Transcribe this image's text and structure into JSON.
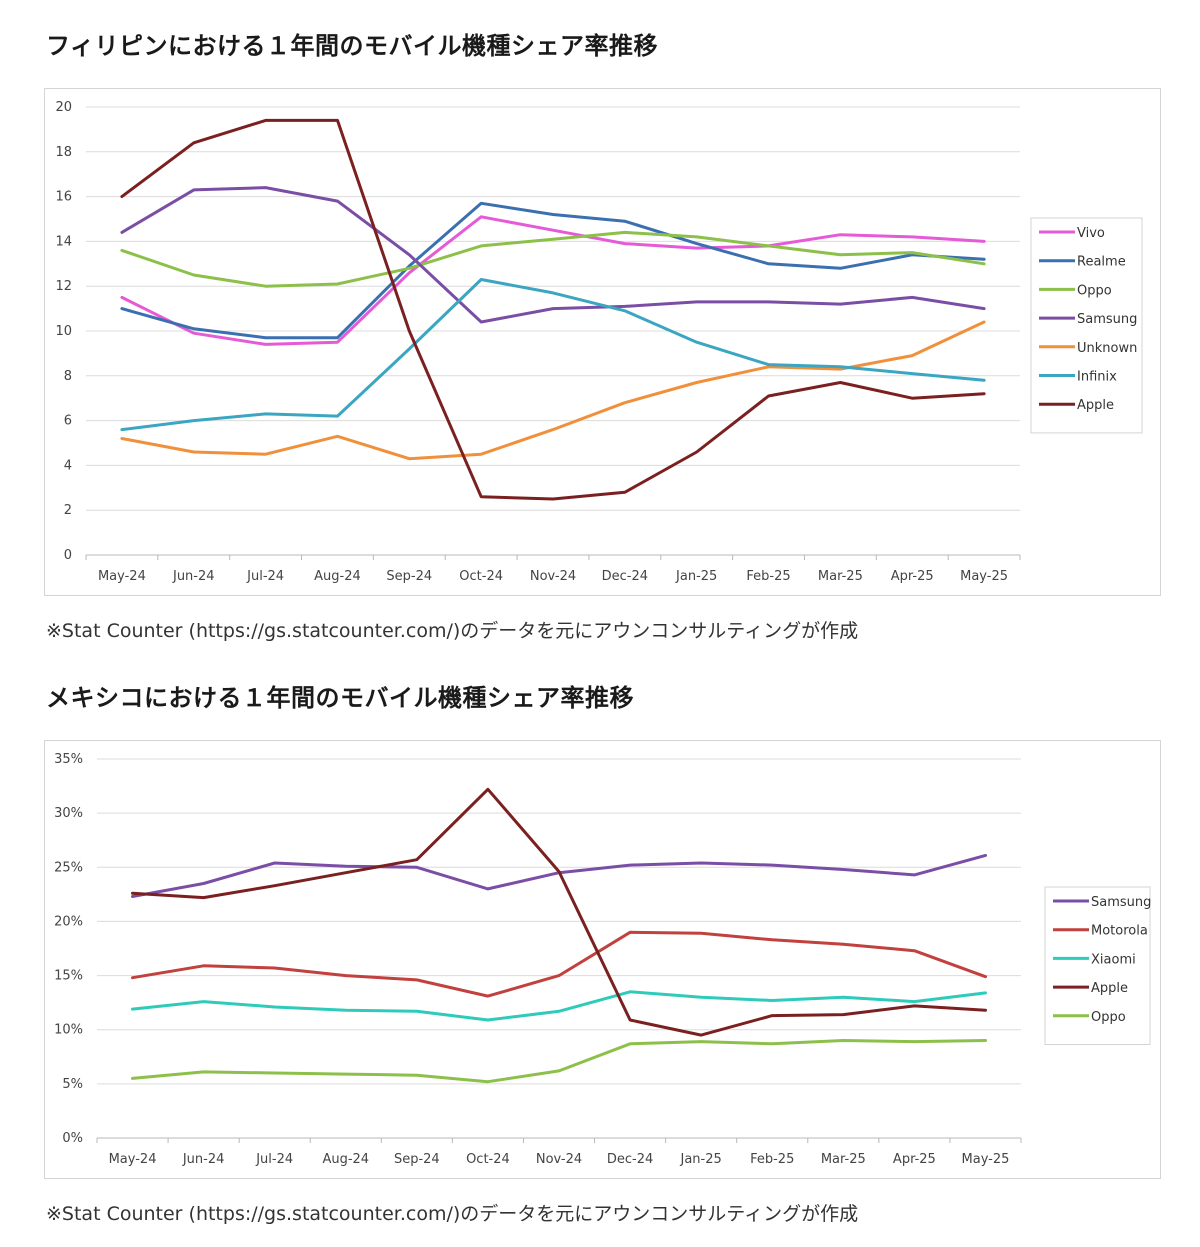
{
  "section1": {
    "title": "フィリピンにおける１年間のモバイル機種シェア率推移",
    "note": "※Stat Counter (https://gs.statcounter.com/)のデータを元にアウンコンサルティングが作成"
  },
  "section2": {
    "title": "メキシコにおける１年間のモバイル機種シェア率推移",
    "note": "※Stat Counter (https://gs.statcounter.com/)のデータを元にアウンコンサルティングが作成"
  },
  "chart_data": [
    {
      "type": "line",
      "title": "",
      "xlabel": "",
      "ylabel": "",
      "ylim": [
        0,
        20
      ],
      "ytick_step": 2,
      "ytick_format": "number",
      "grid": true,
      "legend_position": "right",
      "categories": [
        "May-24",
        "Jun-24",
        "Jul-24",
        "Aug-24",
        "Sep-24",
        "Oct-24",
        "Nov-24",
        "Dec-24",
        "Jan-25",
        "Feb-25",
        "Mar-25",
        "Apr-25",
        "May-25"
      ],
      "series": [
        {
          "name": "Vivo",
          "color": "#e55ad6",
          "values": [
            11.5,
            9.9,
            9.4,
            9.5,
            12.6,
            15.1,
            14.5,
            13.9,
            13.7,
            13.8,
            14.3,
            14.2,
            14.0
          ]
        },
        {
          "name": "Realme",
          "color": "#3a6fb0",
          "values": [
            11.0,
            10.1,
            9.7,
            9.7,
            12.9,
            15.7,
            15.2,
            14.9,
            13.9,
            13.0,
            12.8,
            13.4,
            13.2
          ]
        },
        {
          "name": "Oppo",
          "color": "#8cc04a",
          "values": [
            13.6,
            12.5,
            12.0,
            12.1,
            12.8,
            13.8,
            14.1,
            14.4,
            14.2,
            13.8,
            13.4,
            13.5,
            13.0
          ]
        },
        {
          "name": "Samsung",
          "color": "#7a4ea5",
          "values": [
            14.4,
            16.3,
            16.4,
            15.8,
            13.4,
            10.4,
            11.0,
            11.1,
            11.3,
            11.3,
            11.2,
            11.5,
            11.0
          ]
        },
        {
          "name": "Unknown",
          "color": "#f0903a",
          "values": [
            5.2,
            4.6,
            4.5,
            5.3,
            4.3,
            4.5,
            5.6,
            6.8,
            7.7,
            8.4,
            8.3,
            8.9,
            10.4
          ]
        },
        {
          "name": "Infinix",
          "color": "#3aa6c2",
          "values": [
            5.6,
            6.0,
            6.3,
            6.2,
            9.2,
            12.3,
            11.7,
            10.9,
            9.5,
            8.5,
            8.4,
            8.1,
            7.8
          ]
        },
        {
          "name": "Apple",
          "color": "#7b2020",
          "values": [
            16.0,
            18.4,
            19.4,
            19.4,
            10.0,
            2.6,
            2.5,
            2.8,
            4.6,
            7.1,
            7.7,
            7.0,
            7.2
          ]
        }
      ]
    },
    {
      "type": "line",
      "title": "",
      "xlabel": "",
      "ylabel": "",
      "ylim": [
        0,
        35
      ],
      "ytick_step": 5,
      "ytick_format": "percent",
      "grid": true,
      "legend_position": "right",
      "categories": [
        "May-24",
        "Jun-24",
        "Jul-24",
        "Aug-24",
        "Sep-24",
        "Oct-24",
        "Nov-24",
        "Dec-24",
        "Jan-25",
        "Feb-25",
        "Mar-25",
        "Apr-25",
        "May-25"
      ],
      "series": [
        {
          "name": "Samsung",
          "color": "#7a4ea5",
          "values": [
            22.3,
            23.5,
            25.4,
            25.1,
            25.0,
            23.0,
            24.5,
            25.2,
            25.4,
            25.2,
            24.8,
            24.3,
            26.1
          ]
        },
        {
          "name": "Motorola",
          "color": "#c0413d",
          "values": [
            14.8,
            15.9,
            15.7,
            15.0,
            14.6,
            13.1,
            15.0,
            19.0,
            18.9,
            18.3,
            17.9,
            17.3,
            14.9
          ]
        },
        {
          "name": "Xiaomi",
          "color": "#2ecbbb",
          "values": [
            11.9,
            12.6,
            12.1,
            11.8,
            11.7,
            10.9,
            11.7,
            13.5,
            13.0,
            12.7,
            13.0,
            12.6,
            13.4
          ]
        },
        {
          "name": "Apple",
          "color": "#7b2020",
          "values": [
            22.6,
            22.2,
            23.3,
            24.5,
            25.7,
            32.2,
            24.6,
            10.9,
            9.5,
            11.3,
            11.4,
            12.2,
            11.8
          ]
        },
        {
          "name": "Oppo",
          "color": "#8cc04a",
          "values": [
            5.5,
            6.1,
            6.0,
            5.9,
            5.8,
            5.2,
            6.2,
            8.7,
            8.9,
            8.7,
            9.0,
            8.9,
            9.0
          ]
        }
      ]
    }
  ]
}
